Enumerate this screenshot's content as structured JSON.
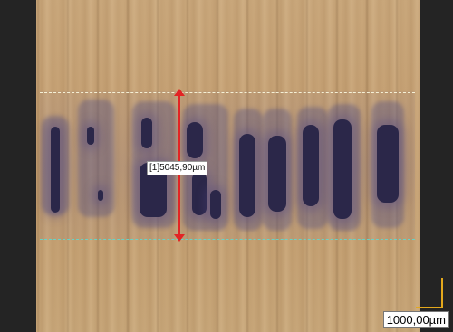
{
  "measurement": {
    "label": "[1]5045,90µm",
    "line_color": "#e22424"
  },
  "scale_bar": {
    "label": "1000,00µm",
    "color": "#e3a81c"
  },
  "colors": {
    "background": "#242424",
    "wood": "#c49f72",
    "ink": "#2b2749",
    "guide_top": "#fffbe6",
    "guide_bottom": "#5adcd2"
  }
}
